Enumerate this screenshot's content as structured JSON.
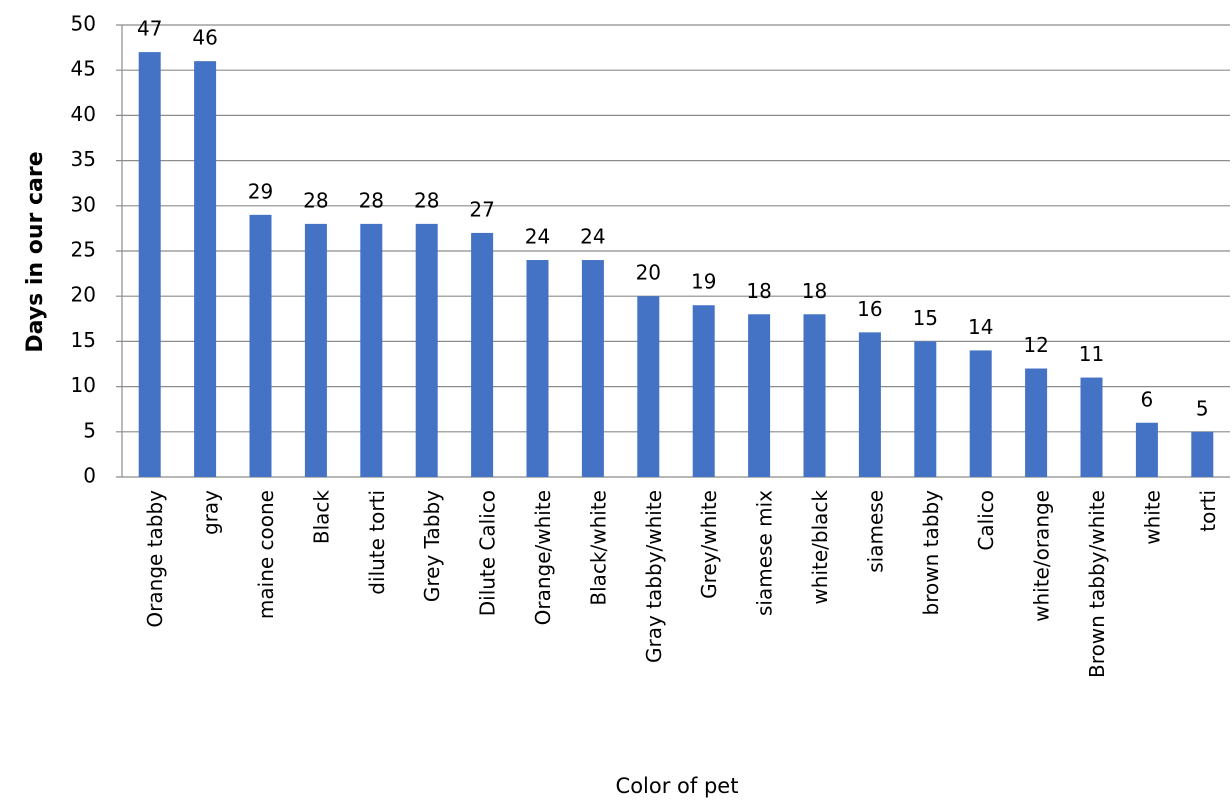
{
  "chart_data": {
    "type": "bar",
    "y_label": "Days in our care",
    "x_label": "Color of pet",
    "categories": [
      "Orange tabby",
      "gray",
      "maine coone",
      "Black",
      "dilute torti",
      "Grey Tabby",
      "Dilute Calico",
      "Orange/white",
      "Black/white",
      "Gray tabby/white",
      "Grey/white",
      "siamese mix",
      "white/black",
      "siamese",
      "brown tabby",
      "Calico",
      "white/orange",
      "Brown tabby/white",
      "white",
      "torti"
    ],
    "values": [
      47,
      46,
      29,
      28,
      28,
      28,
      27,
      24,
      24,
      20,
      19,
      18,
      18,
      16,
      15,
      14,
      12,
      11,
      6,
      5
    ],
    "color": "#4472c4",
    "ylim": [
      0,
      50
    ],
    "yticks": [
      0,
      5,
      10,
      15,
      20,
      25,
      30,
      35,
      40,
      45,
      50
    ],
    "grid": true
  }
}
